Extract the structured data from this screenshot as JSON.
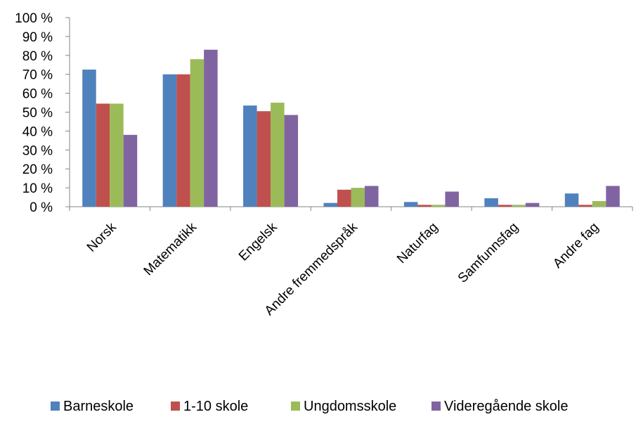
{
  "chart_data": {
    "type": "bar",
    "title": "",
    "xlabel": "",
    "ylabel": "",
    "ylim": [
      0,
      100
    ],
    "y_ticks": [
      "0 %",
      "10 %",
      "20 %",
      "30 %",
      "40 %",
      "50 %",
      "60 %",
      "70 %",
      "80 %",
      "90 %",
      "100 %"
    ],
    "y_tick_values": [
      0,
      10,
      20,
      30,
      40,
      50,
      60,
      70,
      80,
      90,
      100
    ],
    "grid": false,
    "legend_position": "bottom",
    "categories": [
      "Norsk",
      "Matematikk",
      "Engelsk",
      "Andre fremmedspråk",
      "Naturfag",
      "Samfunnsfag",
      "Andre fag"
    ],
    "series": [
      {
        "name": "Barneskole",
        "color": "#4F81BD",
        "values": [
          72.5,
          70,
          53.5,
          2,
          2.5,
          4.5,
          7
        ]
      },
      {
        "name": "1-10 skole",
        "color": "#C0504D",
        "values": [
          54.5,
          70,
          50.5,
          9,
          1,
          1,
          1
        ]
      },
      {
        "name": "Ungdomsskole",
        "color": "#9BBB59",
        "values": [
          54.5,
          78,
          55,
          10,
          1,
          1,
          3
        ]
      },
      {
        "name": "Videregående skole",
        "color": "#8064A2",
        "values": [
          38,
          83,
          48.5,
          11,
          8,
          2,
          11
        ]
      }
    ]
  }
}
